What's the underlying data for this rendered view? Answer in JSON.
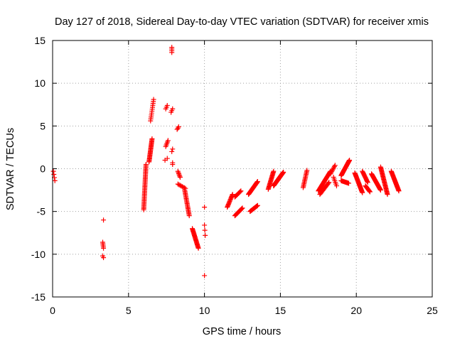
{
  "chart_data": {
    "type": "scatter",
    "title": "Day 127 of 2018, Sidereal Day-to-day VTEC variation (SDTVAR) for receiver xmis",
    "xlabel": "GPS time / hours",
    "ylabel": "SDTVAR / TECUs",
    "xlim": [
      0,
      25
    ],
    "ylim": [
      -15,
      15
    ],
    "xticks": [
      "0",
      "5",
      "10",
      "15",
      "20",
      "25"
    ],
    "yticks": [
      "15",
      "10",
      "5",
      "0",
      "-5",
      "-10",
      "-15"
    ],
    "grid": true,
    "marker": "+",
    "colors": {
      "points": "#ff0000",
      "axes": "#000000",
      "grid": "#a0a0a0"
    },
    "series": [
      {
        "name": "SDTVAR",
        "segments": [
          {
            "t0": 0.05,
            "t1": 0.15,
            "v0": -0.3,
            "v1": -1.4,
            "n": 4
          },
          {
            "t0": 3.3,
            "t1": 3.35,
            "v0": -8.6,
            "v1": -9.3,
            "n": 5
          },
          {
            "t0": 3.3,
            "t1": 3.35,
            "v0": -10.2,
            "v1": -10.4,
            "n": 2
          },
          {
            "t0": 3.35,
            "t1": 3.35,
            "v0": -6.0,
            "v1": -6.0,
            "n": 1
          },
          {
            "t0": 6.0,
            "t1": 6.15,
            "v0": -4.8,
            "v1": 0.5,
            "n": 36
          },
          {
            "t0": 6.35,
            "t1": 6.55,
            "v0": 0.8,
            "v1": 3.5,
            "n": 24
          },
          {
            "t0": 6.45,
            "t1": 6.65,
            "v0": 5.6,
            "v1": 8.1,
            "n": 12
          },
          {
            "t0": 7.45,
            "t1": 7.6,
            "v0": 2.6,
            "v1": 3.3,
            "n": 5
          },
          {
            "t0": 7.45,
            "t1": 7.55,
            "v0": 7.0,
            "v1": 7.4,
            "n": 3
          },
          {
            "t0": 7.4,
            "t1": 7.55,
            "v0": 1.0,
            "v1": 1.2,
            "n": 2
          },
          {
            "t0": 7.8,
            "t1": 7.9,
            "v0": 6.6,
            "v1": 7.0,
            "n": 3
          },
          {
            "t0": 7.85,
            "t1": 7.85,
            "v0": 13.6,
            "v1": 14.2,
            "n": 4
          },
          {
            "t0": 7.85,
            "t1": 7.9,
            "v0": 2.0,
            "v1": 2.3,
            "n": 2
          },
          {
            "t0": 7.9,
            "t1": 7.9,
            "v0": 0.5,
            "v1": 0.7,
            "n": 2
          },
          {
            "t0": 8.2,
            "t1": 8.3,
            "v0": 4.6,
            "v1": 4.9,
            "n": 3
          },
          {
            "t0": 8.25,
            "t1": 8.4,
            "v0": -0.3,
            "v1": -1.0,
            "n": 6
          },
          {
            "t0": 8.25,
            "t1": 8.75,
            "v0": -1.8,
            "v1": -2.3,
            "n": 8
          },
          {
            "t0": 8.7,
            "t1": 9.0,
            "v0": -2.5,
            "v1": -5.5,
            "n": 22
          },
          {
            "t0": 9.2,
            "t1": 9.6,
            "v0": -7.0,
            "v1": -9.3,
            "n": 24
          },
          {
            "t0": 10.0,
            "t1": 10.0,
            "v0": -4.5,
            "v1": -4.5,
            "n": 1
          },
          {
            "t0": 10.0,
            "t1": 10.05,
            "v0": -6.6,
            "v1": -7.8,
            "n": 3
          },
          {
            "t0": 10.0,
            "t1": 10.0,
            "v0": -12.5,
            "v1": -12.5,
            "n": 1
          },
          {
            "t0": 11.5,
            "t1": 11.85,
            "v0": -4.5,
            "v1": -3.0,
            "n": 14
          },
          {
            "t0": 12.0,
            "t1": 12.4,
            "v0": -3.3,
            "v1": -2.6,
            "n": 10
          },
          {
            "t0": 12.0,
            "t1": 12.5,
            "v0": -5.5,
            "v1": -4.6,
            "n": 14
          },
          {
            "t0": 12.9,
            "t1": 13.5,
            "v0": -3.0,
            "v1": -1.5,
            "n": 26
          },
          {
            "t0": 13.0,
            "t1": 13.5,
            "v0": -5.0,
            "v1": -4.3,
            "n": 14
          },
          {
            "t0": 14.2,
            "t1": 14.55,
            "v0": -2.4,
            "v1": -0.3,
            "n": 20
          },
          {
            "t0": 14.55,
            "t1": 15.2,
            "v0": -2.0,
            "v1": -0.4,
            "n": 34
          },
          {
            "t0": 16.5,
            "t1": 16.75,
            "v0": -2.2,
            "v1": -0.2,
            "n": 14
          },
          {
            "t0": 17.5,
            "t1": 18.3,
            "v0": -2.6,
            "v1": -0.3,
            "n": 30
          },
          {
            "t0": 17.6,
            "t1": 18.2,
            "v0": -3.0,
            "v1": -1.6,
            "n": 14
          },
          {
            "t0": 18.3,
            "t1": 18.6,
            "v0": -0.6,
            "v1": 0.4,
            "n": 8
          },
          {
            "t0": 18.5,
            "t1": 18.7,
            "v0": -1.0,
            "v1": -2.0,
            "n": 6
          },
          {
            "t0": 19.0,
            "t1": 19.55,
            "v0": -0.8,
            "v1": 1.0,
            "n": 30
          },
          {
            "t0": 19.0,
            "t1": 19.5,
            "v0": -1.4,
            "v1": -1.7,
            "n": 12
          },
          {
            "t0": 19.9,
            "t1": 20.4,
            "v0": -0.5,
            "v1": -2.8,
            "n": 28
          },
          {
            "t0": 20.4,
            "t1": 20.75,
            "v0": -0.3,
            "v1": -1.6,
            "n": 14
          },
          {
            "t0": 20.6,
            "t1": 20.9,
            "v0": -2.0,
            "v1": -2.7,
            "n": 10
          },
          {
            "t0": 21.0,
            "t1": 21.6,
            "v0": -0.6,
            "v1": -2.5,
            "n": 30
          },
          {
            "t0": 21.6,
            "t1": 22.05,
            "v0": 0.2,
            "v1": -3.0,
            "n": 30
          },
          {
            "t0": 22.3,
            "t1": 22.8,
            "v0": -0.3,
            "v1": -2.6,
            "n": 28
          }
        ]
      }
    ]
  }
}
